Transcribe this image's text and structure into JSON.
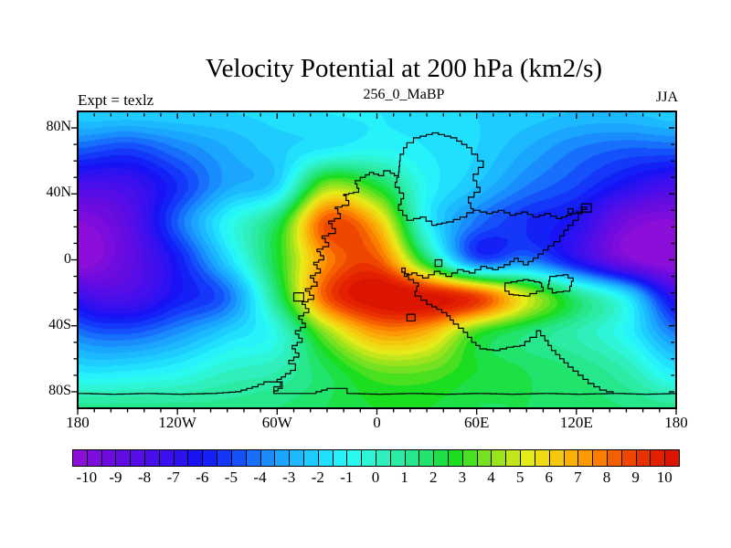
{
  "header": {
    "title": "Velocity Potential at 200 hPa (km2/s)",
    "subtitle": "256_0_MaBP",
    "experiment_label": "Expt = texlz",
    "season_label": "JJA"
  },
  "axes": {
    "x": {
      "tick_labels": [
        "180",
        "120W",
        "60W",
        "0",
        "60E",
        "120E",
        "180"
      ],
      "tick_lons": [
        -180,
        -120,
        -60,
        0,
        60,
        120,
        180
      ],
      "minor_step_deg": 10,
      "range": [
        -180,
        180
      ]
    },
    "y": {
      "tick_labels": [
        "80N",
        "40N",
        "0",
        "40S",
        "80S"
      ],
      "tick_lats": [
        80,
        40,
        0,
        -40,
        -80
      ],
      "minor_step_deg": 10,
      "range": [
        -90,
        90
      ]
    }
  },
  "colorbar": {
    "labels": [
      "-10",
      "-9",
      "-8",
      "-7",
      "-6",
      "-5",
      "-4",
      "-3",
      "-2",
      "-1",
      "0",
      "1",
      "2",
      "3",
      "4",
      "5",
      "6",
      "7",
      "8",
      "9",
      "10"
    ],
    "values": [
      -10,
      -9,
      -8,
      -7,
      -6,
      -5,
      -4,
      -3,
      -2,
      -1,
      0,
      1,
      2,
      3,
      4,
      5,
      6,
      7,
      8,
      9,
      10
    ],
    "num_cells": 42,
    "level_step": 0.5,
    "level_range": [
      -10,
      10
    ]
  },
  "chart_data": {
    "type": "heatmap",
    "title": "Velocity Potential at 200 hPa (km2/s)",
    "variable": "velocity potential",
    "units": "km2/s",
    "pressure_level": "200 hPa",
    "season": "JJA",
    "experiment": "texlz",
    "time_label": "256_0_MaBP",
    "projection": "cylindrical equidistant",
    "lon_range": [
      -180,
      180
    ],
    "lat_range": [
      -90,
      90
    ],
    "contour_interval": 0.5,
    "legend_position": "bottom",
    "grid": {
      "lons": [
        -180,
        -150,
        -120,
        -90,
        -60,
        -30,
        0,
        30,
        60,
        90,
        120,
        150,
        180
      ],
      "lats": [
        90,
        67.5,
        45,
        22.5,
        0,
        -22.5,
        -45,
        -67.5,
        -90
      ],
      "values": [
        [
          -2.0,
          -2.0,
          -2.0,
          -2.0,
          -1.8,
          -1.5,
          -1.5,
          -1.8,
          -2.0,
          -2.2,
          -2.5,
          -2.5,
          -2.0
        ],
        [
          -4.5,
          -5.0,
          -4.0,
          -3.0,
          -2.2,
          -1.5,
          -1.0,
          -1.5,
          -2.0,
          -3.0,
          -4.0,
          -4.5,
          -4.5
        ],
        [
          -7.7,
          -7.5,
          -5.5,
          -3.2,
          -2.0,
          4.0,
          2.5,
          -1.0,
          -2.5,
          -4.0,
          -5.0,
          -6.5,
          -7.7
        ],
        [
          -10.1,
          -8.5,
          -4.5,
          -1.0,
          2.0,
          8.6,
          6.5,
          -1.0,
          -4.2,
          -5.5,
          -6.5,
          -9.5,
          -10.1
        ],
        [
          -10.6,
          -8.8,
          -6.0,
          -2.0,
          2.5,
          7.5,
          8.5,
          2.0,
          -4.6,
          -4.0,
          -6.5,
          -9.6,
          -10.6
        ],
        [
          -7.0,
          -7.8,
          -6.0,
          -4.3,
          1.5,
          8.5,
          10.7,
          10.4,
          9.0,
          5.0,
          1.5,
          -1.5,
          -7.0
        ],
        [
          -4.0,
          -4.5,
          -3.5,
          -2.0,
          -0.5,
          4.0,
          7.0,
          6.5,
          3.0,
          1.5,
          0.5,
          -1.0,
          -4.0
        ],
        [
          -1.5,
          -1.5,
          -1.0,
          0.0,
          0.5,
          2.0,
          3.5,
          3.5,
          2.5,
          2.0,
          1.5,
          0.5,
          -1.5
        ],
        [
          1.2,
          1.2,
          1.2,
          1.2,
          1.5,
          2.0,
          2.5,
          2.5,
          2.0,
          2.0,
          1.8,
          1.5,
          1.2
        ]
      ]
    },
    "extrema": {
      "min": {
        "value": -10.7,
        "lon": 178,
        "lat": 8
      },
      "max": {
        "value": 10.7,
        "lon": 0,
        "lat": -22
      },
      "secondary_max": {
        "value": 9.0,
        "lon": -35,
        "lat": 25
      },
      "blue_pocket": {
        "value": -4.8,
        "lon": 60,
        "lat": 3
      }
    },
    "palette_anchors": [
      [
        -11,
        282,
        0.93,
        0.84
      ],
      [
        -9,
        266,
        0.95,
        0.88
      ],
      [
        -7,
        250,
        0.93,
        0.94
      ],
      [
        -5,
        228,
        0.92,
        0.98
      ],
      [
        -3.5,
        206,
        0.9,
        1.0
      ],
      [
        -2,
        191,
        0.88,
        1.0
      ],
      [
        -0.5,
        174,
        0.82,
        0.97
      ],
      [
        0.5,
        161,
        0.8,
        0.93
      ],
      [
        1.5,
        148,
        0.85,
        0.9
      ],
      [
        2.5,
        128,
        0.88,
        0.87
      ],
      [
        3.5,
        100,
        0.85,
        0.88
      ],
      [
        4.5,
        76,
        0.88,
        0.9
      ],
      [
        5.5,
        57,
        0.9,
        0.93
      ],
      [
        6.5,
        45,
        0.95,
        0.97
      ],
      [
        7.5,
        33,
        1.0,
        1.0
      ],
      [
        8.5,
        20,
        1.0,
        0.95
      ],
      [
        9.5,
        10,
        1.0,
        0.9
      ],
      [
        11,
        3,
        1.0,
        0.84
      ]
    ],
    "coastline_color": "#000000",
    "coastlines": [
      {
        "name": "mainland-west-coast",
        "closed": false,
        "points": [
          [
            13,
            51
          ],
          [
            8,
            54
          ],
          [
            4,
            51
          ],
          [
            -2,
            53
          ],
          [
            -7,
            50
          ],
          [
            -13,
            46
          ],
          [
            -11,
            41
          ],
          [
            -20,
            39
          ],
          [
            -17,
            33
          ],
          [
            -25,
            31
          ],
          [
            -22,
            25
          ],
          [
            -29,
            22
          ],
          [
            -25,
            16
          ],
          [
            -33,
            13
          ],
          [
            -29,
            8
          ],
          [
            -36,
            5
          ],
          [
            -32,
            0
          ],
          [
            -38,
            -3
          ],
          [
            -34,
            -8
          ],
          [
            -40,
            -11
          ],
          [
            -36,
            -16
          ],
          [
            -43,
            -19
          ],
          [
            -38,
            -24
          ],
          [
            -45,
            -27
          ],
          [
            -41,
            -32
          ],
          [
            -47,
            -36
          ],
          [
            -43,
            -41
          ],
          [
            -49,
            -45
          ],
          [
            -45,
            -50
          ],
          [
            -51,
            -54
          ],
          [
            -47,
            -59
          ],
          [
            -53,
            -63
          ],
          [
            -49,
            -67
          ],
          [
            -55,
            -71
          ],
          [
            -60,
            -74
          ],
          [
            -57,
            -78
          ],
          [
            -62,
            -81
          ]
        ]
      },
      {
        "name": "inland-sea-loop",
        "closed": true,
        "points": [
          [
            13,
            50
          ],
          [
            11,
            44
          ],
          [
            16,
            37
          ],
          [
            13,
            30
          ],
          [
            18,
            24
          ],
          [
            26,
            26
          ],
          [
            33,
            21
          ],
          [
            42,
            23
          ],
          [
            50,
            26
          ],
          [
            58,
            31
          ],
          [
            55,
            38
          ],
          [
            62,
            44
          ],
          [
            58,
            52
          ],
          [
            64,
            60
          ],
          [
            57,
            68
          ],
          [
            48,
            74
          ],
          [
            37,
            77
          ],
          [
            26,
            74
          ],
          [
            18,
            68
          ],
          [
            14,
            60
          ]
        ]
      },
      {
        "name": "tethys-coast",
        "closed": false,
        "points": [
          [
            58,
            30
          ],
          [
            66,
            28
          ],
          [
            73,
            30
          ],
          [
            80,
            27
          ],
          [
            87,
            29
          ],
          [
            94,
            26
          ],
          [
            101,
            28
          ],
          [
            108,
            25
          ],
          [
            114,
            27
          ],
          [
            120,
            29
          ],
          [
            126,
            32
          ],
          [
            121,
            24
          ],
          [
            115,
            18
          ],
          [
            110,
            11
          ],
          [
            103,
            6
          ],
          [
            97,
            1
          ],
          [
            91,
            -3
          ],
          [
            85,
            1
          ],
          [
            80,
            -3
          ],
          [
            73,
            -6
          ],
          [
            66,
            -4
          ],
          [
            59,
            -8
          ],
          [
            52,
            -6
          ],
          [
            45,
            -10
          ],
          [
            38,
            -7
          ],
          [
            31,
            -11
          ],
          [
            24,
            -8
          ],
          [
            18,
            -10
          ],
          [
            15,
            -5
          ],
          [
            19,
            -12
          ],
          [
            25,
            -16
          ],
          [
            23,
            -22
          ],
          [
            30,
            -27
          ],
          [
            36,
            -30
          ],
          [
            42,
            -34
          ],
          [
            46,
            -39
          ],
          [
            52,
            -44
          ],
          [
            57,
            -50
          ],
          [
            62,
            -54
          ],
          [
            70,
            -55
          ],
          [
            78,
            -53
          ],
          [
            86,
            -52
          ],
          [
            92,
            -47
          ],
          [
            96,
            -43
          ],
          [
            101,
            -49
          ],
          [
            105,
            -55
          ],
          [
            110,
            -60
          ],
          [
            115,
            -65
          ],
          [
            121,
            -70
          ],
          [
            127,
            -75
          ],
          [
            134,
            -79
          ],
          [
            142,
            -81
          ]
        ]
      },
      {
        "name": "antarctica-coast",
        "closed": false,
        "points": [
          [
            -180,
            -81
          ],
          [
            -160,
            -81.5
          ],
          [
            -140,
            -81
          ],
          [
            -120,
            -81.5
          ],
          [
            -100,
            -81
          ],
          [
            -85,
            -80
          ],
          [
            -75,
            -77
          ],
          [
            -68,
            -74
          ],
          [
            -62,
            -74
          ],
          [
            -58,
            -77
          ],
          [
            -62,
            -81
          ],
          [
            -40,
            -81
          ],
          [
            -30,
            -78
          ],
          [
            -22,
            -78
          ],
          [
            -18,
            -81
          ],
          [
            0,
            -81.5
          ],
          [
            20,
            -81
          ],
          [
            40,
            -81.5
          ],
          [
            60,
            -81
          ],
          [
            80,
            -81.5
          ],
          [
            100,
            -81
          ],
          [
            120,
            -81.5
          ],
          [
            142,
            -81
          ],
          [
            160,
            -81.5
          ],
          [
            180,
            -81
          ]
        ]
      },
      {
        "name": "island-equatorial",
        "closed": true,
        "points": [
          [
            35,
            0
          ],
          [
            39,
            0
          ],
          [
            39,
            -4
          ],
          [
            35,
            -4
          ]
        ]
      },
      {
        "name": "island-tethys-west",
        "closed": true,
        "points": [
          [
            77,
            -14
          ],
          [
            88,
            -12
          ],
          [
            98,
            -14
          ],
          [
            100,
            -19
          ],
          [
            92,
            -22
          ],
          [
            82,
            -21
          ],
          [
            77,
            -17
          ]
        ]
      },
      {
        "name": "island-tethys-east",
        "closed": true,
        "points": [
          [
            104,
            -10
          ],
          [
            112,
            -9
          ],
          [
            118,
            -13
          ],
          [
            116,
            -19
          ],
          [
            108,
            -20
          ],
          [
            103,
            -15
          ]
        ]
      },
      {
        "name": "island-northeast",
        "closed": true,
        "points": [
          [
            123,
            29
          ],
          [
            129,
            29
          ],
          [
            129,
            34
          ],
          [
            123,
            34
          ]
        ]
      },
      {
        "name": "island-northeast-small",
        "closed": true,
        "points": [
          [
            115,
            31
          ],
          [
            118,
            31
          ],
          [
            118,
            28
          ],
          [
            115,
            28
          ]
        ]
      },
      {
        "name": "island-south-small",
        "closed": true,
        "points": [
          [
            18,
            -33
          ],
          [
            23,
            -33
          ],
          [
            23,
            -37
          ],
          [
            18,
            -37
          ]
        ]
      },
      {
        "name": "island-west-notch",
        "closed": true,
        "points": [
          [
            -50,
            -20
          ],
          [
            -44,
            -20
          ],
          [
            -44,
            -25
          ],
          [
            -50,
            -25
          ]
        ]
      }
    ]
  }
}
